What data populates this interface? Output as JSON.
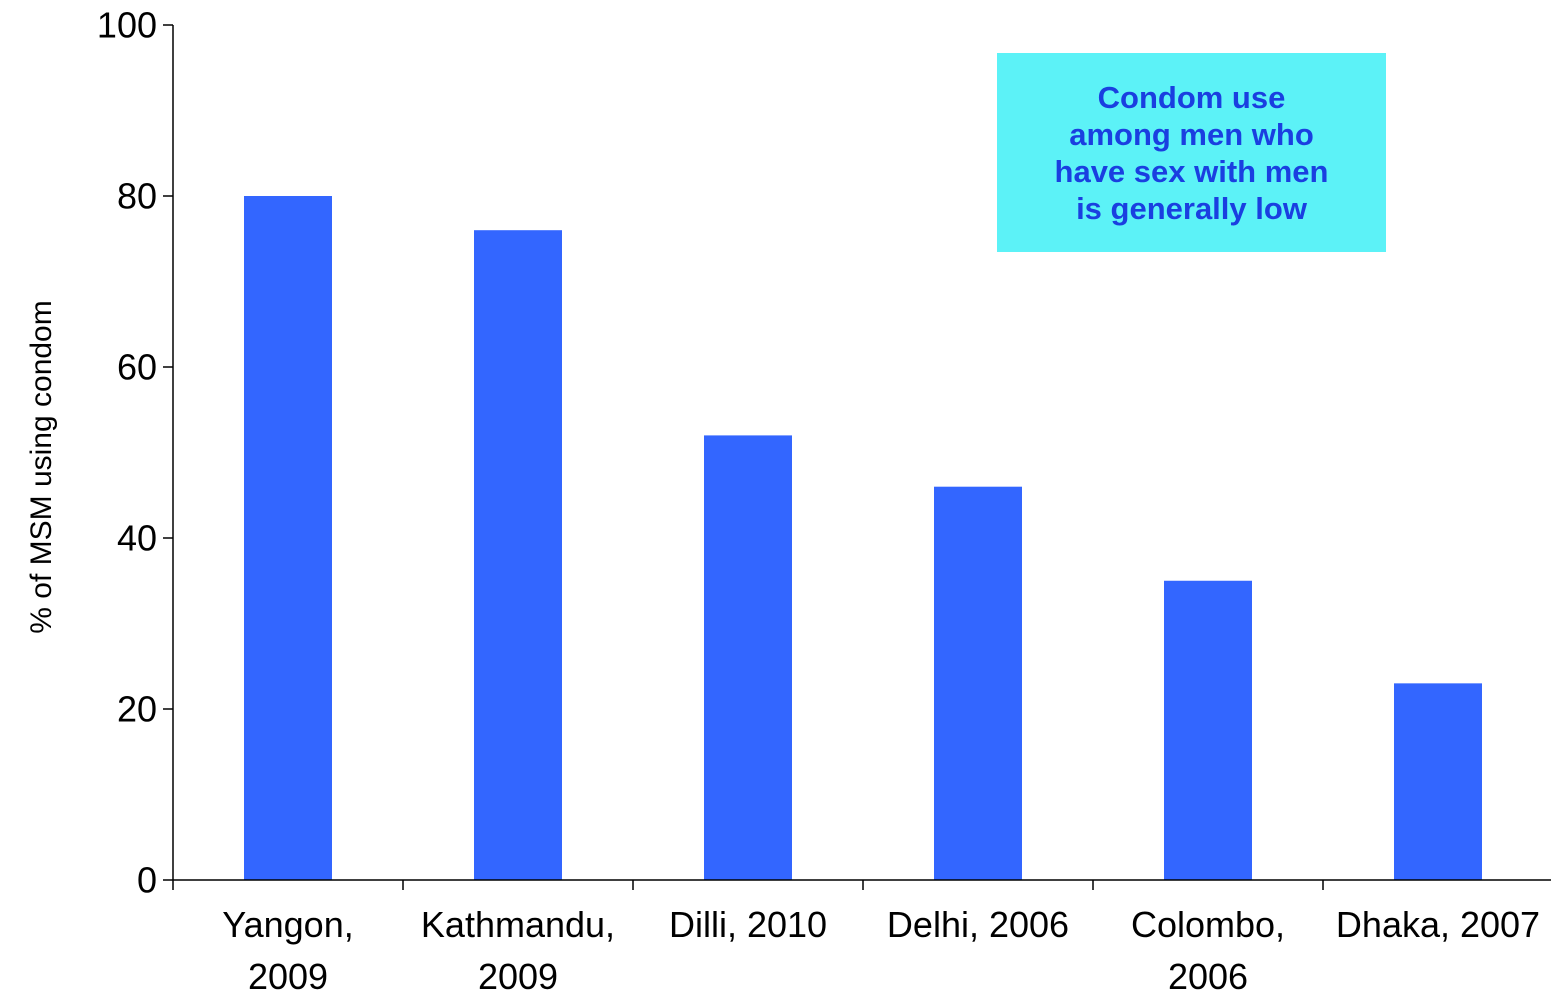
{
  "chart_data": {
    "type": "bar",
    "title": "",
    "xlabel": "",
    "ylabel": "% of MSM using condom",
    "ylim": [
      0,
      100
    ],
    "yticks": [
      "0",
      "20",
      "40",
      "60",
      "80",
      "100"
    ],
    "categories": [
      [
        "Yangon,",
        "2009"
      ],
      [
        "Kathmandu,",
        "2009"
      ],
      [
        "Dilli, 2010"
      ],
      [
        "Delhi, 2006"
      ],
      [
        "Colombo,",
        "2006"
      ],
      [
        "Dhaka, 2007"
      ]
    ],
    "values": [
      80,
      76,
      52,
      46,
      35,
      23
    ],
    "bar_color": "#3366ff",
    "grid": false,
    "legend": "none",
    "annotation": {
      "lines": [
        "Condom use",
        "among men who",
        "have sex with men",
        "is generally low"
      ],
      "background": "#5cf2f7",
      "text_color": "#1a3fe0"
    }
  }
}
